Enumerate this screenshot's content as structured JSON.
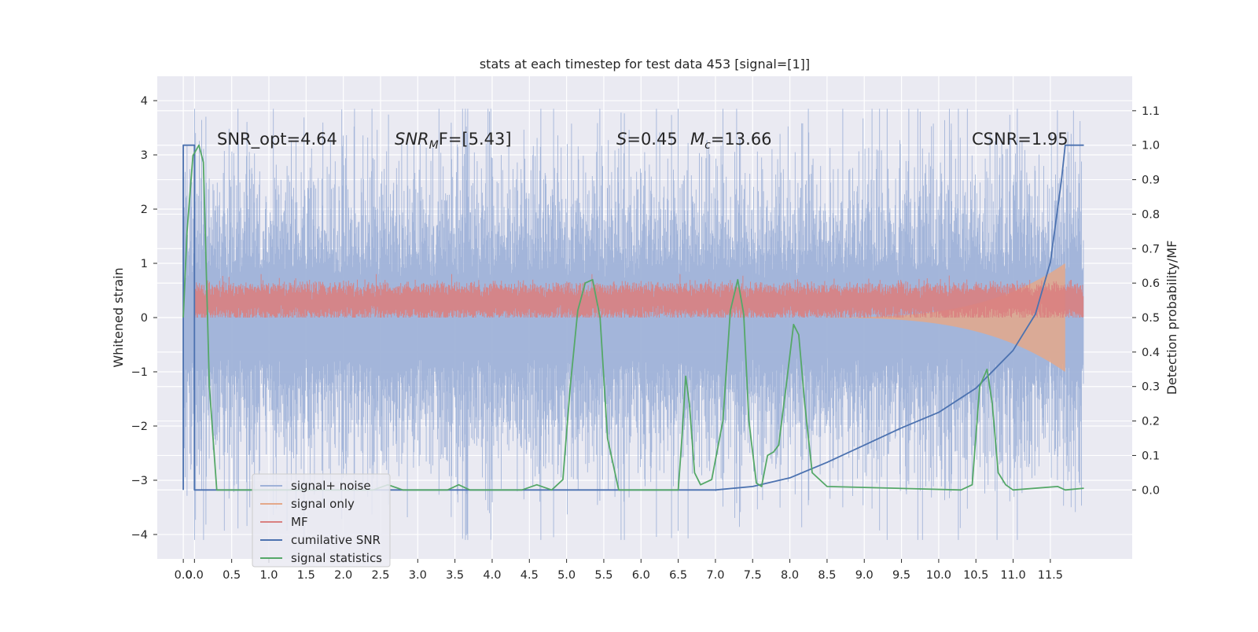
{
  "chart_data": {
    "type": "line",
    "title": "stats at each timestep for test data 453 [signal=[1]]",
    "xlabel": "",
    "ylabel": "Whitened strain",
    "ylabel_right": "Detection probability/MF",
    "xlim": [
      -0.5,
      12.6
    ],
    "ylim": [
      -4.45,
      4.45
    ],
    "ylim_right": [
      -0.2,
      1.2
    ],
    "grid": true,
    "legend_position": "lower-left",
    "x_ticks": [
      "0.0",
      "0.0",
      "0.5",
      "1.0",
      "1.5",
      "2.0",
      "2.5",
      "3.0",
      "3.5",
      "4.0",
      "4.5",
      "5.0",
      "5.5",
      "6.0",
      "6.5",
      "7.0",
      "7.5",
      "8.0",
      "8.5",
      "9.0",
      "9.5",
      "10.0",
      "10.5",
      "11.0",
      "11.5"
    ],
    "x_tick_values": [
      -0.15,
      0.0,
      0.5,
      1.0,
      1.5,
      2.0,
      2.5,
      3.0,
      3.5,
      4.0,
      4.5,
      5.0,
      5.5,
      6.0,
      6.5,
      7.0,
      7.5,
      8.0,
      8.5,
      9.0,
      9.5,
      10.0,
      10.5,
      11.0,
      11.5
    ],
    "y_ticks": [
      "4",
      "3",
      "2",
      "1",
      "0",
      "−1",
      "−2",
      "−3",
      "−4"
    ],
    "y_tick_values": [
      4,
      3,
      2,
      1,
      0,
      -1,
      -2,
      -3,
      -4
    ],
    "y_ticks_right": [
      "1.1",
      "1.0",
      "0.9",
      "0.8",
      "0.7",
      "0.6",
      "0.5",
      "0.4",
      "0.3",
      "0.2",
      "0.1",
      "0.0"
    ],
    "y_tick_values_right": [
      1.1,
      1.0,
      0.9,
      0.8,
      0.7,
      0.6,
      0.5,
      0.4,
      0.3,
      0.2,
      0.1,
      0.0
    ],
    "annotations": {
      "snr_opt": "SNR_opt=4.64",
      "snr_mf_main": "SNR",
      "snr_mf_sub": "M",
      "snr_mf_rest": "F=[5.43]",
      "s_main": "S",
      "s_rest": "=0.45",
      "mc_main": "M",
      "mc_sub": "c",
      "mc_rest": "=13.66",
      "csnr": "CSNR=1.95"
    },
    "series": [
      {
        "name": "signal+ noise",
        "color": "#9fb2d8",
        "axis": "left",
        "note": "dense whitened noise band",
        "band": {
          "x_start": -0.15,
          "x_end": 11.95,
          "typical_amplitude": 2.0,
          "peak_max": 3.85,
          "peak_min": -4.1
        }
      },
      {
        "name": "signal only",
        "color": "#e4a88a",
        "axis": "left",
        "note": "chirp signal growing toward merger",
        "chirp": {
          "x_start": 8.0,
          "x_end": 11.7,
          "max_amplitude": 1.0
        }
      },
      {
        "name": "MF",
        "color": "#d98080",
        "axis": "left",
        "band": {
          "x_start": 0.0,
          "x_end": 11.95,
          "center": 0.3,
          "half_width": 0.3,
          "peak_max": 0.8
        }
      },
      {
        "name": "cumilative SNR",
        "color": "#4c72b0",
        "axis": "right",
        "x": [
          -0.15,
          -0.15,
          0.0,
          0.0,
          0.12,
          0.12,
          7.0,
          7.5,
          8.0,
          8.5,
          9.0,
          9.5,
          10.0,
          10.5,
          11.0,
          11.3,
          11.5,
          11.65,
          11.7,
          11.95
        ],
        "y": [
          0.0,
          1.0,
          1.0,
          0.0,
          0.0,
          0.0,
          0.0,
          0.01,
          0.035,
          0.08,
          0.13,
          0.18,
          0.225,
          0.295,
          0.405,
          0.51,
          0.66,
          0.9,
          1.0,
          1.0
        ]
      },
      {
        "name": "signal statistics",
        "color": "#55a868",
        "axis": "right",
        "x": [
          -0.15,
          -0.1,
          -0.02,
          0.06,
          0.12,
          0.2,
          0.3,
          2.4,
          2.6,
          2.8,
          3.4,
          3.55,
          3.7,
          4.4,
          4.6,
          4.8,
          4.95,
          5.05,
          5.15,
          5.25,
          5.35,
          5.45,
          5.55,
          5.7,
          6.5,
          6.55,
          6.6,
          6.65,
          6.72,
          6.8,
          6.95,
          7.1,
          7.2,
          7.3,
          7.38,
          7.45,
          7.55,
          7.62,
          7.7,
          7.78,
          7.85,
          7.95,
          8.05,
          8.12,
          8.2,
          8.3,
          8.5,
          10.3,
          10.45,
          10.55,
          10.65,
          10.72,
          10.8,
          10.9,
          11.0,
          11.6,
          11.7,
          11.95
        ],
        "y": [
          0.5,
          0.75,
          0.97,
          1.0,
          0.95,
          0.3,
          0.0,
          0.0,
          0.015,
          0.0,
          0.0,
          0.015,
          0.0,
          0.0,
          0.015,
          0.0,
          0.03,
          0.3,
          0.52,
          0.6,
          0.61,
          0.5,
          0.15,
          0.0,
          0.0,
          0.15,
          0.33,
          0.25,
          0.05,
          0.015,
          0.03,
          0.2,
          0.52,
          0.61,
          0.51,
          0.2,
          0.02,
          0.01,
          0.1,
          0.11,
          0.13,
          0.3,
          0.48,
          0.45,
          0.25,
          0.05,
          0.01,
          0.0,
          0.015,
          0.3,
          0.35,
          0.25,
          0.05,
          0.015,
          0.0,
          0.01,
          0.0,
          0.005
        ]
      }
    ]
  }
}
